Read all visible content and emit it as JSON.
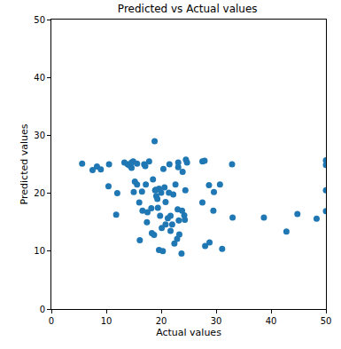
{
  "chart_data": {
    "type": "scatter",
    "title": "Predicted vs Actual values",
    "x_label": "Actual values",
    "y_label": "Predicted values",
    "color": "#1f77b4",
    "marker": "circle",
    "grid": false,
    "xlim": [
      0,
      50
    ],
    "ylim": [
      0,
      50
    ],
    "xticks": [
      0,
      10,
      20,
      30,
      40,
      50
    ],
    "yticks": [
      0,
      10,
      20,
      30,
      40,
      50
    ],
    "x": [
      5.6,
      7.5,
      8.3,
      9,
      10.4,
      10.5,
      11.8,
      12,
      13.3,
      13.9,
      14.2,
      14.6,
      14.9,
      15,
      15.2,
      15.6,
      15.6,
      16,
      16.1,
      16.5,
      16.6,
      16.9,
      17.1,
      17.2,
      17.4,
      17.5,
      17.8,
      18.2,
      18.5,
      18.7,
      18.8,
      19,
      19.1,
      19.3,
      19.4,
      19.6,
      19.6,
      19.8,
      20,
      20.1,
      20.3,
      20.4,
      20.6,
      20.8,
      20.8,
      21.2,
      21.4,
      21.5,
      21.7,
      21.7,
      22,
      22.2,
      22.4,
      22.6,
      22.9,
      23,
      23.1,
      23.1,
      23.2,
      23.3,
      23.7,
      23.8,
      23.9,
      24.2,
      24.3,
      24.4,
      24.5,
      24.7,
      27.5,
      27.5,
      27.9,
      28,
      28.7,
      28.8,
      29.6,
      29.5,
      30.7,
      31.1,
      32.9,
      33,
      38.7,
      42.8,
      44.8,
      48.3,
      50,
      50,
      50,
      50,
      18.3,
      18.9,
      14.6
    ],
    "values": [
      25.1,
      24,
      24.6,
      24.1,
      21.2,
      25,
      16.3,
      20,
      25.3,
      25,
      24.8,
      24.4,
      25.5,
      20.2,
      22,
      21.5,
      25.1,
      18.4,
      11.9,
      20.3,
      17,
      25,
      24.7,
      21.5,
      15,
      16.7,
      25.5,
      17.4,
      22.4,
      12.8,
      29,
      20.6,
      19.5,
      19,
      17.5,
      10.2,
      20.8,
      16.1,
      20.1,
      14,
      10,
      24.2,
      21,
      14.6,
      18.5,
      15.7,
      20.1,
      25,
      13.5,
      16.1,
      14.6,
      19.8,
      11.3,
      21.5,
      12.1,
      17.2,
      24.5,
      25.3,
      15.3,
      12.9,
      9.6,
      17,
      23.7,
      16.2,
      15.4,
      20.5,
      25.8,
      25.3,
      18.4,
      25.5,
      25.6,
      10.9,
      21.4,
      11.5,
      20.2,
      17,
      21.5,
      10.4,
      25,
      15.8,
      15.8,
      13.4,
      16.4,
      15.6,
      25.7,
      24.9,
      20.5,
      16.9,
      13.1,
      20.5,
      25.3
    ]
  }
}
